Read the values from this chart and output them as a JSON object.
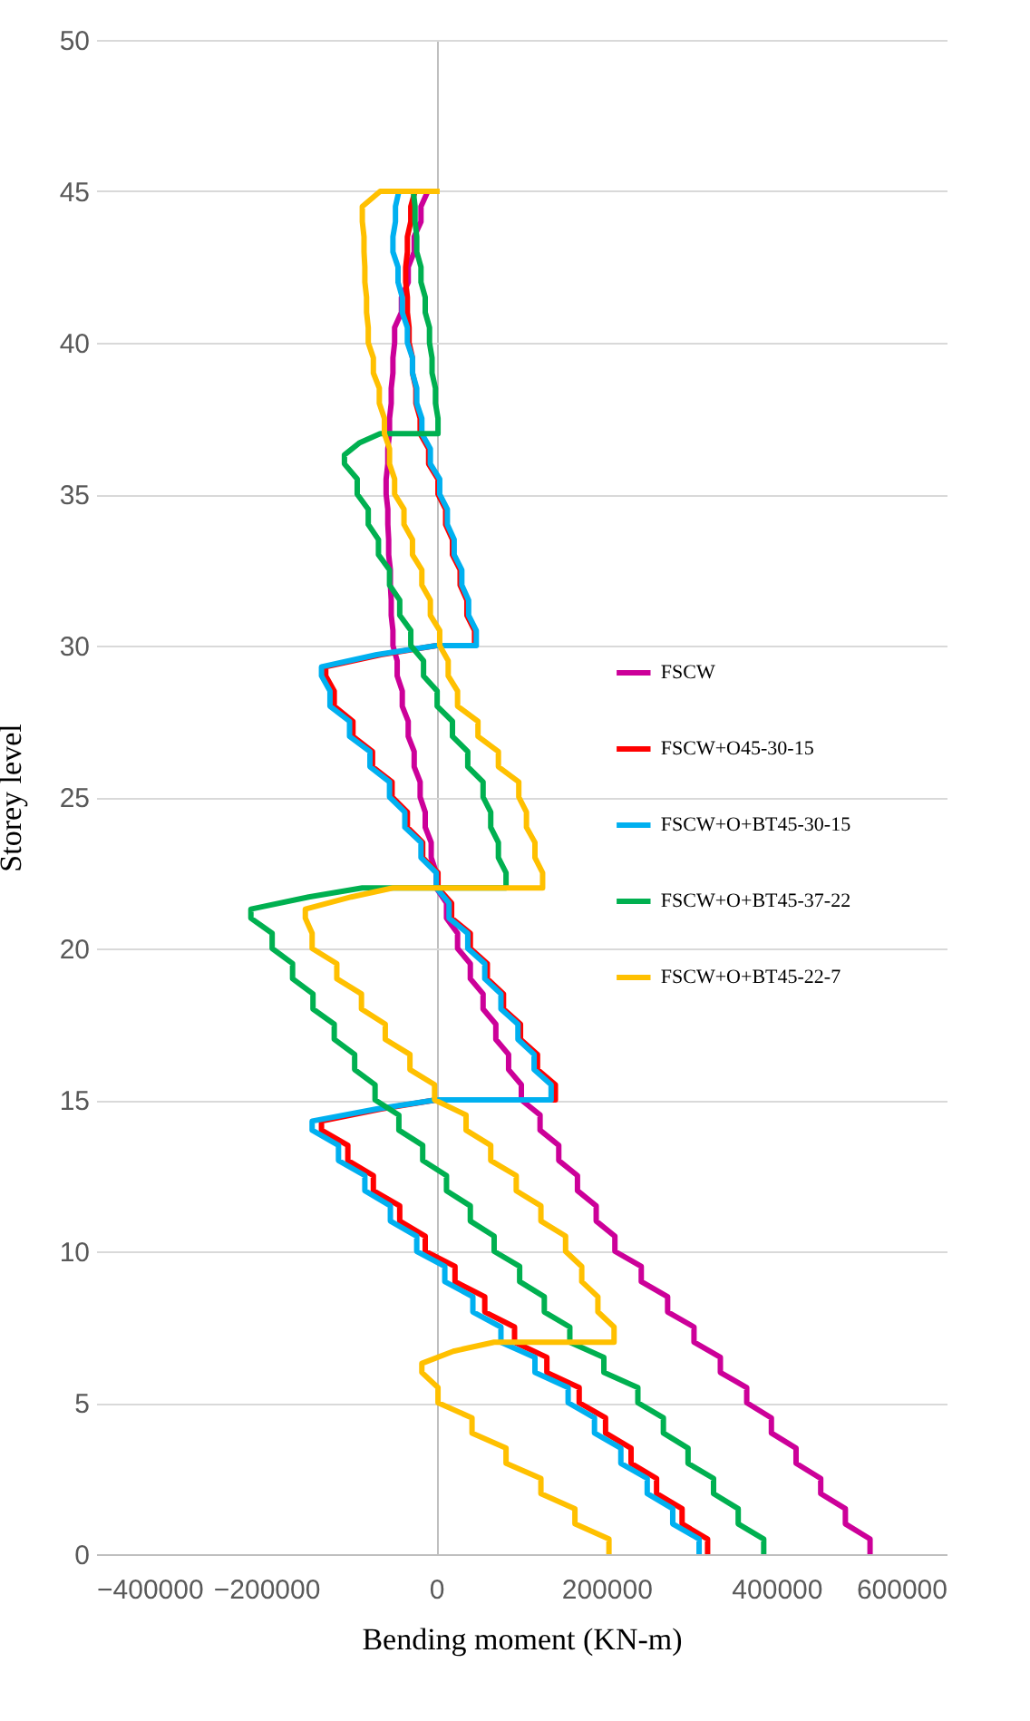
{
  "chart_data": {
    "type": "line",
    "xlabel": "Bending moment (KN-m)",
    "ylabel": "Storey level",
    "xlim": [
      -400000,
      600000
    ],
    "xticks": [
      -400000,
      -200000,
      0,
      200000,
      400000,
      600000
    ],
    "ylim": [
      0,
      50
    ],
    "yticks": [
      0,
      5,
      10,
      15,
      20,
      25,
      30,
      35,
      40,
      45,
      50
    ],
    "grid": "y",
    "legend": "right",
    "marker": "none",
    "line_style": "solid",
    "series": [
      {
        "name": "FSCW",
        "color": "#cc0099",
        "x": [
          510000,
          510000,
          481000,
          481000,
          452000,
          452000,
          423000,
          423000,
          394000,
          394000,
          365000,
          365000,
          334000,
          334000,
          303000,
          303000,
          272000,
          272000,
          241000,
          241000,
          210000,
          210000,
          188000,
          188000,
          166000,
          166000,
          144000,
          144000,
          122000,
          122000,
          100000,
          100000,
          85000,
          85000,
          70000,
          70000,
          55000,
          55000,
          40000,
          40000,
          25000,
          25000,
          12000,
          12000,
          0,
          0,
          -6000,
          -6000,
          -13000,
          -13000,
          -19000,
          -19000,
          -26000,
          -26000,
          -33000,
          -33000,
          -40000,
          -40000,
          -46000,
          -46000,
          -51000,
          -51000,
          -53000,
          -53000,
          -54000,
          -54000,
          -56000,
          -56000,
          -57000,
          -57000,
          -59000,
          -59000,
          -57000,
          -57000,
          -55000,
          -55000,
          -53000,
          -53000,
          -51000,
          -51000,
          -49000,
          -49000,
          -41000,
          -41000,
          -33000,
          -33000,
          -26000,
          -26000,
          -18000,
          -18000,
          -10000
        ],
        "values": [
          0,
          0.5,
          1,
          1.5,
          2,
          2.5,
          3,
          3.5,
          4,
          4.5,
          5,
          5.5,
          6,
          6.5,
          7,
          7.5,
          8,
          8.5,
          9,
          9.5,
          10,
          10.5,
          11,
          11.5,
          12,
          12.5,
          13,
          13.5,
          14,
          14.5,
          15,
          15.5,
          16,
          16.5,
          17,
          17.5,
          18,
          18.5,
          19,
          19.5,
          20,
          20.5,
          21,
          21.5,
          22,
          22.5,
          23,
          23.5,
          24,
          24.5,
          25,
          25.5,
          26,
          26.5,
          27,
          27.5,
          28,
          28.5,
          29,
          29.5,
          30,
          30.5,
          31,
          31.5,
          32,
          32.5,
          33,
          33.5,
          34,
          34.5,
          35,
          35.5,
          36,
          36.5,
          37,
          37.5,
          38,
          38.5,
          39,
          39.5,
          40,
          40.5,
          41,
          41.5,
          42,
          42.5,
          43,
          43.5,
          44,
          44.5,
          45
        ]
      },
      {
        "name": "FSCW+O45-30-15",
        "color": "#ff0000",
        "x": [
          319000,
          319000,
          289000,
          289000,
          259000,
          259000,
          229000,
          229000,
          199000,
          199000,
          168000,
          168000,
          130000,
          130000,
          92000,
          92000,
          57000,
          57000,
          22000,
          22000,
          -13000,
          -13000,
          -43000,
          -43000,
          -74000,
          -74000,
          -104000,
          -104000,
          -135000,
          -135000,
          -65000,
          0,
          140000,
          140000,
          119000,
          119000,
          99000,
          99000,
          79000,
          79000,
          60000,
          60000,
          40000,
          40000,
          18000,
          18000,
          2000,
          2000,
          -16000,
          -16000,
          -34000,
          -34000,
          -52000,
          -52000,
          -75000,
          -75000,
          -98000,
          -98000,
          -120000,
          -120000,
          -130000,
          -130000,
          -65000,
          0,
          45000,
          45000,
          36000,
          36000,
          28000,
          28000,
          19000,
          19000,
          11000,
          11000,
          2000,
          2000,
          -9000,
          -9000,
          -19000,
          -19000,
          -24000,
          -24000,
          -28000,
          -28000,
          -32000,
          -32000,
          -34000,
          -34000,
          -36000,
          -36000,
          -34000,
          -34000,
          -30000,
          -30000,
          -25000
        ],
        "values": [
          0,
          0.5,
          1,
          1.5,
          2,
          2.5,
          3,
          3.5,
          4,
          4.5,
          5,
          5.5,
          6,
          6.5,
          7,
          7.5,
          8,
          8.5,
          9,
          9.5,
          10,
          10.5,
          11,
          11.5,
          12,
          12.5,
          13,
          13.5,
          14,
          14.3,
          14.7,
          15,
          15,
          15.5,
          16,
          16.5,
          17,
          17.5,
          18,
          18.5,
          19,
          19.5,
          20,
          20.5,
          21,
          21.5,
          22,
          22.5,
          23,
          23.5,
          24,
          24.5,
          25,
          25.5,
          26,
          26.5,
          27,
          27.5,
          28,
          28.5,
          29,
          29.3,
          29.7,
          30,
          30,
          30.5,
          31,
          31.5,
          32,
          32.5,
          33,
          33.5,
          34,
          34.5,
          35,
          35.5,
          36,
          36.5,
          37,
          37.5,
          38,
          38.5,
          39,
          39.5,
          40,
          40.5,
          41,
          41.5,
          42,
          42.5,
          43,
          43.5,
          44,
          44.5,
          45
        ]
      },
      {
        "name": "FSCW+O+BT45-30-15",
        "color": "#00b0f0",
        "x": [
          309000,
          309000,
          278000,
          278000,
          248000,
          248000,
          217000,
          217000,
          186000,
          186000,
          155000,
          155000,
          116000,
          116000,
          76000,
          76000,
          43000,
          43000,
          10000,
          10000,
          -23000,
          -23000,
          -54000,
          -54000,
          -84000,
          -84000,
          -115000,
          -115000,
          -146000,
          -146000,
          -70000,
          0,
          135000,
          135000,
          115000,
          115000,
          96000,
          96000,
          76000,
          76000,
          57000,
          57000,
          37000,
          37000,
          15000,
          15000,
          0,
          0,
          -18000,
          -18000,
          -37000,
          -37000,
          -55000,
          -55000,
          -78000,
          -78000,
          -102000,
          -102000,
          -125000,
          -125000,
          -135000,
          -135000,
          -70000,
          0,
          47000,
          47000,
          38000,
          38000,
          30000,
          30000,
          21000,
          21000,
          13000,
          13000,
          4000,
          4000,
          -7000,
          -7000,
          -17000,
          -17000,
          -23000,
          -23000,
          -28000,
          -28000,
          -34000,
          -34000,
          -40000,
          -40000,
          -45000,
          -45000,
          -51000,
          -51000,
          -48000,
          -48000,
          -44000
        ],
        "values": [
          0,
          0.5,
          1,
          1.5,
          2,
          2.5,
          3,
          3.5,
          4,
          4.5,
          5,
          5.5,
          6,
          6.5,
          7,
          7.5,
          8,
          8.5,
          9,
          9.5,
          10,
          10.5,
          11,
          11.5,
          12,
          12.5,
          13,
          13.5,
          14,
          14.3,
          14.7,
          15,
          15,
          15.5,
          16,
          16.5,
          17,
          17.5,
          18,
          18.5,
          19,
          19.5,
          20,
          20.5,
          21,
          21.5,
          22,
          22.5,
          23,
          23.5,
          24,
          24.5,
          25,
          25.5,
          26,
          26.5,
          27,
          27.5,
          28,
          28.5,
          29,
          29.3,
          29.7,
          30,
          30,
          30.5,
          31,
          31.5,
          32,
          32.5,
          33,
          33.5,
          34,
          34.5,
          35,
          35.5,
          36,
          36.5,
          37,
          37.5,
          38,
          38.5,
          39,
          39.5,
          40,
          40.5,
          41,
          41.5,
          42,
          42.5,
          43,
          43.5,
          44,
          44.5,
          45
        ]
      },
      {
        "name": "FSCW+O+BT45-37-22",
        "color": "#00b050",
        "x": [
          385000,
          385000,
          355000,
          355000,
          326000,
          326000,
          296000,
          296000,
          267000,
          267000,
          237000,
          237000,
          197000,
          197000,
          157000,
          157000,
          127000,
          127000,
          98000,
          98000,
          68000,
          68000,
          40000,
          40000,
          12000,
          12000,
          -16000,
          -16000,
          -44000,
          -44000,
          -72000,
          -72000,
          -96000,
          -96000,
          -120000,
          -120000,
          -145000,
          -145000,
          -169000,
          -169000,
          -193000,
          -193000,
          -218000,
          -218000,
          -150000,
          -87000,
          82000,
          82000,
          73000,
          73000,
          64000,
          64000,
          55000,
          55000,
          37000,
          37000,
          19000,
          19000,
          1000,
          1000,
          -15000,
          -15000,
          -30000,
          -30000,
          -43000,
          -43000,
          -55000,
          -55000,
          -68000,
          -68000,
          -80000,
          -80000,
          -93000,
          -93000,
          -108000,
          -108000,
          -90000,
          -66000,
          2000,
          2000,
          -1000,
          -1000,
          -5000,
          -5000,
          -8000,
          -8000,
          -13000,
          -13000,
          -18000,
          -18000,
          -23000,
          -23000,
          -25000,
          -25000,
          -27000
        ],
        "values": [
          0,
          0.5,
          1,
          1.5,
          2,
          2.5,
          3,
          3.5,
          4,
          4.5,
          5,
          5.5,
          6,
          6.5,
          7,
          7.5,
          8,
          8.5,
          9,
          9.5,
          10,
          10.5,
          11,
          11.5,
          12,
          12.5,
          13,
          13.5,
          14,
          14.5,
          15,
          15.5,
          16,
          16.5,
          17,
          17.5,
          18,
          18.5,
          19,
          19.5,
          20,
          20.5,
          21,
          21.3,
          21.7,
          22,
          22,
          22.5,
          23,
          23.5,
          24,
          24.5,
          25,
          25.5,
          26,
          26.5,
          27,
          27.5,
          28,
          28.5,
          29,
          29.5,
          30,
          30.5,
          31,
          31.5,
          32,
          32.5,
          33,
          33.5,
          34,
          34.5,
          35,
          35.5,
          36,
          36.3,
          36.7,
          37,
          37,
          37.5,
          38,
          38.5,
          39,
          39.5,
          40,
          40.5,
          41,
          41.5,
          42,
          42.5,
          43,
          43.5,
          44,
          44.5,
          45
        ]
      },
      {
        "name": "FSCW+O+BT45-22-7",
        "color": "#ffc000",
        "x": [
          203000,
          203000,
          163000,
          163000,
          123000,
          123000,
          82000,
          82000,
          42000,
          42000,
          2000,
          2000,
          -17000,
          -17000,
          20000,
          68000,
          209000,
          209000,
          190000,
          190000,
          171000,
          171000,
          152000,
          152000,
          123000,
          123000,
          94000,
          94000,
          64000,
          64000,
          35000,
          35000,
          -2000,
          -2000,
          -31000,
          -31000,
          -60000,
          -60000,
          -88000,
          -88000,
          -117000,
          -117000,
          -146000,
          -146000,
          -154000,
          -154000,
          -100000,
          -51000,
          125000,
          125000,
          116000,
          116000,
          106000,
          106000,
          97000,
          97000,
          73000,
          73000,
          49000,
          49000,
          25000,
          25000,
          14000,
          14000,
          4000,
          4000,
          -7000,
          -7000,
          -17000,
          -17000,
          -28000,
          -28000,
          -38000,
          -38000,
          -49000,
          -49000,
          -55000,
          -55000,
          -61000,
          -61000,
          -67000,
          -67000,
          -74000,
          -74000,
          -80000,
          -80000,
          -82000,
          -82000,
          -84000,
          -84000,
          -85000,
          -85000,
          -87000,
          -87000,
          -66000,
          4000
        ],
        "values": [
          0,
          0.5,
          1,
          1.5,
          2,
          2.5,
          3,
          3.5,
          4,
          4.5,
          5,
          5.5,
          6,
          6.3,
          6.7,
          7,
          7,
          7.5,
          8,
          8.5,
          9,
          9.5,
          10,
          10.5,
          11,
          11.5,
          12,
          12.5,
          13,
          13.5,
          14,
          14.5,
          15,
          15.5,
          16,
          16.5,
          17,
          17.5,
          18,
          18.5,
          19,
          19.5,
          20,
          20.5,
          21,
          21.3,
          21.7,
          22,
          22,
          22.5,
          23,
          23.5,
          24,
          24.5,
          25,
          25.5,
          26,
          26.5,
          27,
          27.5,
          28,
          28.5,
          29,
          29.5,
          30,
          30.5,
          31,
          31.5,
          32,
          32.5,
          33,
          33.5,
          34,
          34.5,
          35,
          35.5,
          36,
          36.5,
          37,
          37.5,
          38,
          38.5,
          39,
          39.5,
          40,
          40.5,
          41,
          41.5,
          42,
          42.5,
          43,
          43.5,
          44,
          44.5,
          45,
          45
        ]
      }
    ]
  }
}
